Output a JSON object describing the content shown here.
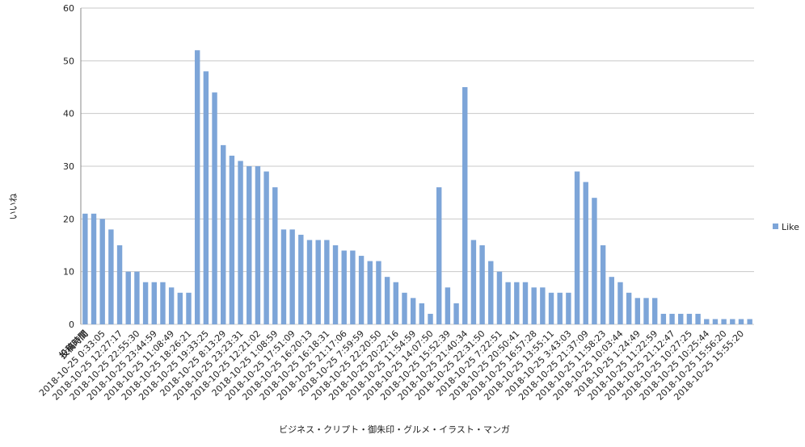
{
  "chart_data": {
    "type": "bar",
    "x_label": "ビジネス・クリプト・御朱印・グルメ・イラスト・マンガ",
    "y_label": "いいね",
    "categories": [
      "投稿時間",
      null,
      "2018-10-25 0:33:05",
      null,
      "2018-10-25 12:27:17",
      null,
      "2018-10-25 22:55:30",
      null,
      "2018-10-25 23:44:59",
      null,
      "2018-10-25 11:08:49",
      null,
      "2018-10-25 18:26:21",
      null,
      "2018-10-25 19:33:25",
      null,
      "2018-10-25 8:13:29",
      null,
      "2018-10-25 23:23:31",
      null,
      "2018-10-25 12:21:02",
      null,
      "2018-10-25 1:08:59",
      null,
      "2018-10-25 17:51:09",
      null,
      "2018-10-25 16:20:13",
      null,
      "2018-10-25 16:18:31",
      null,
      "2018-10-25 21:17:06",
      null,
      "2018-10-25 7:59:59",
      null,
      "2018-10-25 22:20:50",
      null,
      "2018-10-25 20:22:16",
      null,
      "2018-10-25 11:54:59",
      null,
      "2018-10-25 14:07:50",
      null,
      "2018-10-25 15:52:39",
      null,
      "2018-10-25 21:40:34",
      null,
      "2018-10-25 22:31:50",
      null,
      "2018-10-25 7:22:51",
      null,
      "2018-10-25 20:50:41",
      null,
      "2018-10-25 16:57:28",
      null,
      "2018-10-25 13:55:11",
      null,
      "2018-10-25 3:43:03",
      null,
      "2018-10-25 21:37:09",
      null,
      "2018-10-25 11:58:23",
      null,
      "2018-10-25 10:03:44",
      null,
      "2018-10-25 1:24:49",
      null,
      "2018-10-25 11:22:59",
      null,
      "2018-10-25 21:12:47",
      null,
      "2018-10-25 10:27:25",
      null,
      "2018-10-25 10:25:44",
      null,
      "2018-10-25 15:56:20",
      null,
      "2018-10-25 15:55:20",
      null
    ],
    "series": [
      {
        "name": "Like",
        "color": "#7da5d8",
        "values": [
          21,
          21,
          20,
          18,
          15,
          10,
          10,
          8,
          8,
          8,
          7,
          6,
          6,
          52,
          48,
          44,
          34,
          32,
          31,
          30,
          30,
          29,
          26,
          18,
          18,
          17,
          16,
          16,
          16,
          15,
          14,
          14,
          13,
          12,
          12,
          9,
          8,
          6,
          5,
          4,
          2,
          26,
          7,
          4,
          45,
          16,
          15,
          12,
          10,
          8,
          8,
          8,
          7,
          7,
          6,
          6,
          6,
          29,
          27,
          24,
          15,
          9,
          8,
          6,
          5,
          5,
          5,
          2,
          2,
          2,
          2,
          2,
          1,
          1,
          1,
          1,
          1,
          1
        ]
      }
    ],
    "ylim": [
      0,
      60
    ],
    "yticks": [
      0,
      10,
      20,
      30,
      40,
      50,
      60
    ],
    "grid": true,
    "legend": "right"
  }
}
